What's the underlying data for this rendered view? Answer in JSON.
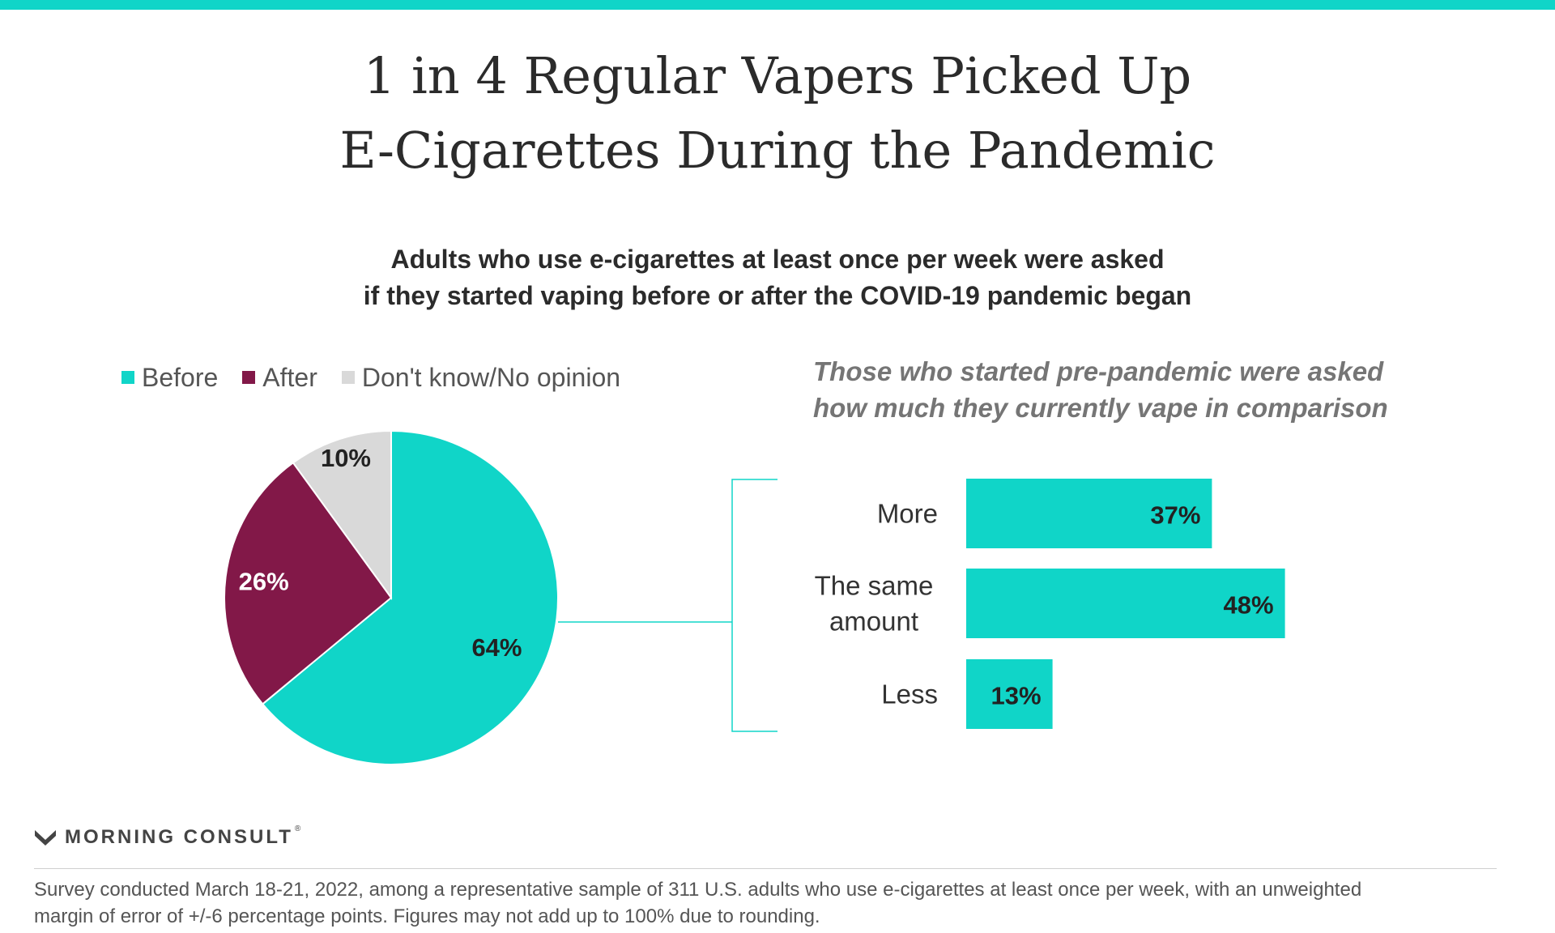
{
  "title": {
    "line1": "1 in 4 Regular Vapers Picked Up",
    "line2": "E-Cigarettes During the Pandemic"
  },
  "subtitle": {
    "line1": "Adults who use e-cigarettes at least once per week were asked",
    "line2": "if they started vaping before or after the COVID-19 pandemic began"
  },
  "bar_note": {
    "line1": "Those who started pre-pandemic were asked",
    "line2": "how much they currently vape in comparison"
  },
  "colors": {
    "accent": "#10d5c8",
    "before": "#10d5c8",
    "after": "#821848",
    "dont_know": "#d9d9d9",
    "bracket": "#10d5c8"
  },
  "chart_data": [
    {
      "type": "pie",
      "legend": [
        "Before",
        "After",
        "Don't know/No opinion"
      ],
      "legend_position": "top-left",
      "slices": [
        {
          "name": "Before",
          "value": 64,
          "label": "64%",
          "color": "#10d5c8",
          "label_color": "#222222"
        },
        {
          "name": "After",
          "value": 26,
          "label": "26%",
          "color": "#821848",
          "label_color": "#ffffff"
        },
        {
          "name": "Don't know/No opinion",
          "value": 10,
          "label": "10%",
          "color": "#d9d9d9",
          "label_color": "#222222"
        }
      ]
    },
    {
      "type": "bar",
      "orientation": "horizontal",
      "categories": [
        [
          "More"
        ],
        [
          "The same",
          "amount"
        ],
        [
          "Less"
        ]
      ],
      "values": [
        37,
        48,
        13
      ],
      "labels": [
        "37%",
        "48%",
        "13%"
      ],
      "color": "#10d5c8",
      "xlim": [
        0,
        100
      ]
    }
  ],
  "logo": {
    "brand": "MORNING CONSULT",
    "mark": "®"
  },
  "footnote": {
    "line1": "Survey conducted March 18-21, 2022, among a representative sample of 311 U.S. adults who use e-cigarettes at least once per week, with an unweighted",
    "line2": "margin of error of +/-6 percentage points. Figures may not add up to 100% due to rounding."
  }
}
